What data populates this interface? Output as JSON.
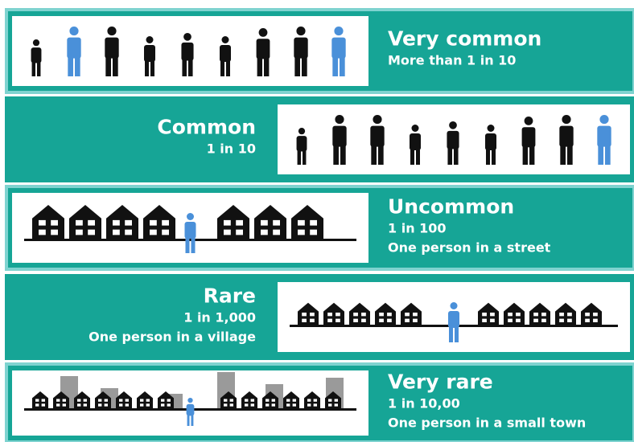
{
  "rows": [
    {
      "title": "Very common",
      "lines": [
        "More than 1 in 10"
      ]
    },
    {
      "title": "Common",
      "lines": [
        "1 in 10"
      ]
    },
    {
      "title": "Uncommon",
      "lines": [
        "1 in 100",
        "One person in a street"
      ]
    },
    {
      "title": "Rare",
      "lines": [
        "1 in 1,000",
        "One person in a village"
      ]
    },
    {
      "title": "Very rare",
      "lines": [
        "1 in 10,00",
        "One person in a small town"
      ]
    }
  ]
}
